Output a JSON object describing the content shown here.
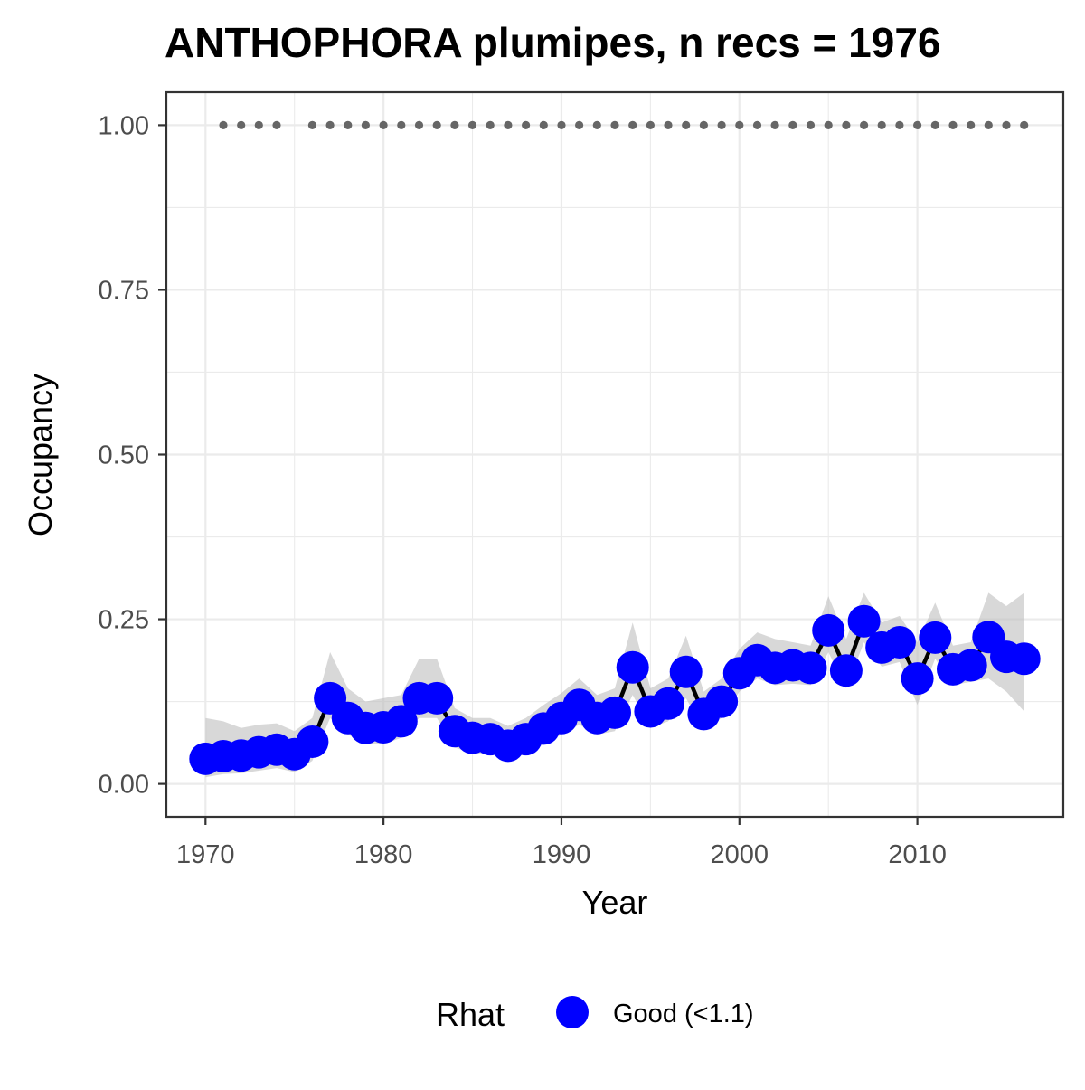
{
  "chart_data": {
    "type": "line",
    "title": "ANTHOPHORA plumipes, n recs = 1976",
    "xlabel": "Year",
    "ylabel": "Occupancy",
    "xlim": [
      1967.8,
      2018.2
    ],
    "ylim": [
      -0.05,
      1.05
    ],
    "x_ticks": [
      1970,
      1980,
      1990,
      2000,
      2010
    ],
    "x_tick_labels": [
      "1970",
      "1980",
      "1990",
      "2000",
      "2010"
    ],
    "y_ticks": [
      0,
      0.25,
      0.5,
      0.75,
      1.0
    ],
    "y_tick_labels": [
      "0.00",
      "0.25",
      "0.50",
      "0.75",
      "1.00"
    ],
    "grid": true,
    "legend": {
      "title": "Rhat",
      "position": "bottom",
      "entries": [
        "Good (<1.1)"
      ]
    },
    "colors": {
      "points": "#0000ff",
      "line": "#000000",
      "ribbon": "#bebebe",
      "record_dots": "#666666"
    },
    "series": [
      {
        "name": "Good (<1.1)",
        "x": [
          1970,
          1971,
          1972,
          1973,
          1974,
          1975,
          1976,
          1977,
          1978,
          1979,
          1980,
          1981,
          1982,
          1983,
          1984,
          1985,
          1986,
          1987,
          1988,
          1989,
          1990,
          1991,
          1992,
          1993,
          1994,
          1995,
          1996,
          1997,
          1998,
          1999,
          2000,
          2001,
          2002,
          2003,
          2004,
          2005,
          2006,
          2007,
          2008,
          2009,
          2010,
          2011,
          2012,
          2013,
          2014,
          2015,
          2016
        ],
        "y": [
          0.038,
          0.042,
          0.043,
          0.048,
          0.052,
          0.045,
          0.064,
          0.13,
          0.1,
          0.085,
          0.086,
          0.095,
          0.13,
          0.13,
          0.08,
          0.07,
          0.068,
          0.058,
          0.068,
          0.084,
          0.1,
          0.12,
          0.1,
          0.108,
          0.177,
          0.11,
          0.122,
          0.17,
          0.106,
          0.125,
          0.168,
          0.188,
          0.176,
          0.18,
          0.176,
          0.233,
          0.172,
          0.247,
          0.207,
          0.215,
          0.16,
          0.222,
          0.174,
          0.18,
          0.223,
          0.193,
          0.19
        ],
        "lower": [
          0.01,
          0.015,
          0.016,
          0.02,
          0.024,
          0.018,
          0.035,
          0.1,
          0.075,
          0.06,
          0.06,
          0.07,
          0.1,
          0.1,
          0.055,
          0.047,
          0.045,
          0.038,
          0.045,
          0.06,
          0.075,
          0.09,
          0.075,
          0.08,
          0.135,
          0.085,
          0.095,
          0.13,
          0.082,
          0.1,
          0.14,
          0.16,
          0.15,
          0.152,
          0.15,
          0.2,
          0.145,
          0.215,
          0.178,
          0.185,
          0.12,
          0.19,
          0.15,
          0.155,
          0.16,
          0.14,
          0.11
        ],
        "upper": [
          0.1,
          0.095,
          0.085,
          0.09,
          0.092,
          0.08,
          0.1,
          0.2,
          0.145,
          0.125,
          0.13,
          0.135,
          0.19,
          0.19,
          0.115,
          0.1,
          0.1,
          0.088,
          0.1,
          0.12,
          0.138,
          0.16,
          0.135,
          0.145,
          0.245,
          0.145,
          0.16,
          0.225,
          0.14,
          0.16,
          0.205,
          0.23,
          0.22,
          0.215,
          0.21,
          0.285,
          0.22,
          0.29,
          0.245,
          0.255,
          0.215,
          0.275,
          0.21,
          0.215,
          0.29,
          0.27,
          0.29
        ]
      }
    ],
    "record_years": [
      1971,
      1972,
      1973,
      1974,
      1976,
      1977,
      1978,
      1979,
      1980,
      1981,
      1982,
      1983,
      1984,
      1985,
      1986,
      1987,
      1988,
      1989,
      1990,
      1991,
      1992,
      1993,
      1994,
      1995,
      1996,
      1997,
      1998,
      1999,
      2000,
      2001,
      2002,
      2003,
      2004,
      2005,
      2006,
      2007,
      2008,
      2009,
      2010,
      2011,
      2012,
      2013,
      2014,
      2015,
      2016
    ],
    "record_value": 1.0
  }
}
